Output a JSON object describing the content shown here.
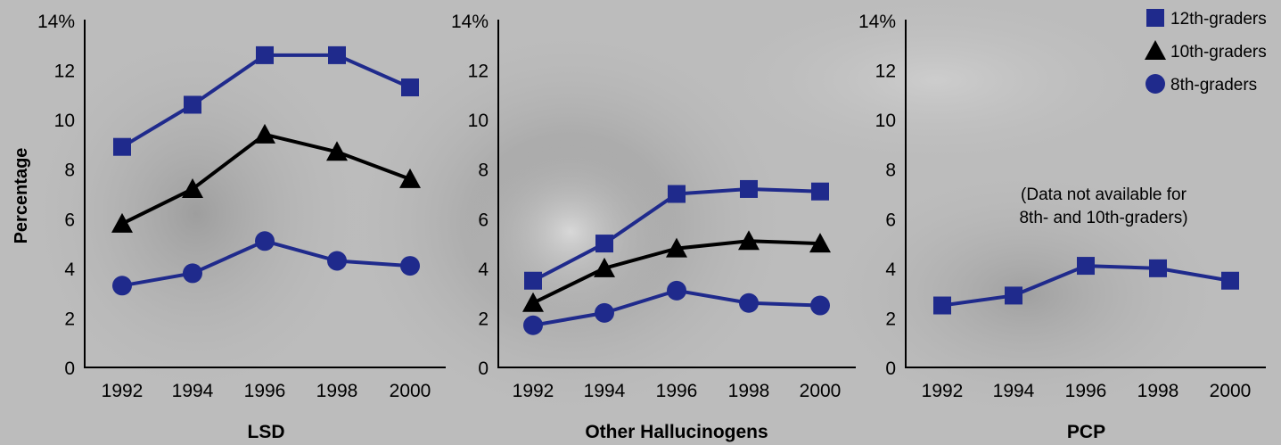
{
  "chart_data": [
    {
      "type": "line",
      "title": "LSD",
      "ylabel": "Percentage",
      "x": [
        "1992",
        "1994",
        "1996",
        "1998",
        "2000"
      ],
      "ylim": [
        0,
        14
      ],
      "yticks": [
        "0",
        "2",
        "4",
        "6",
        "8",
        "10",
        "12",
        "14%"
      ],
      "series": [
        {
          "name": "12th-graders",
          "values": [
            8.9,
            10.6,
            12.6,
            12.6,
            11.3
          ]
        },
        {
          "name": "10th-graders",
          "values": [
            5.8,
            7.2,
            9.4,
            8.7,
            7.6
          ]
        },
        {
          "name": "8th-graders",
          "values": [
            3.3,
            3.8,
            5.1,
            4.3,
            4.1
          ]
        }
      ]
    },
    {
      "type": "line",
      "title": "Other Hallucinogens",
      "x": [
        "1992",
        "1994",
        "1996",
        "1998",
        "2000"
      ],
      "ylim": [
        0,
        14
      ],
      "yticks": [
        "0",
        "2",
        "4",
        "6",
        "8",
        "10",
        "12",
        "14%"
      ],
      "series": [
        {
          "name": "12th-graders",
          "values": [
            3.5,
            5.0,
            7.0,
            7.2,
            7.1
          ]
        },
        {
          "name": "10th-graders",
          "values": [
            2.6,
            4.0,
            4.8,
            5.1,
            5.0
          ]
        },
        {
          "name": "8th-graders",
          "values": [
            1.7,
            2.2,
            3.1,
            2.6,
            2.5
          ]
        }
      ]
    },
    {
      "type": "line",
      "title": "PCP",
      "x": [
        "1992",
        "1994",
        "1996",
        "1998",
        "2000"
      ],
      "ylim": [
        0,
        14
      ],
      "yticks": [
        "0",
        "2",
        "4",
        "6",
        "8",
        "10",
        "12",
        "14%"
      ],
      "annotation": [
        "(Data not available for",
        "8th- and 10th-graders)"
      ],
      "series": [
        {
          "name": "12th-graders",
          "values": [
            2.5,
            2.9,
            4.1,
            4.0,
            3.5
          ]
        }
      ]
    }
  ],
  "legend": [
    {
      "name": "12th-graders",
      "marker": "square"
    },
    {
      "name": "10th-graders",
      "marker": "triangle"
    },
    {
      "name": "8th-graders",
      "marker": "circle"
    }
  ],
  "colors": {
    "12th-graders": "#1f2a8c",
    "10th-graders": "#000000",
    "8th-graders": "#1f2a8c"
  }
}
